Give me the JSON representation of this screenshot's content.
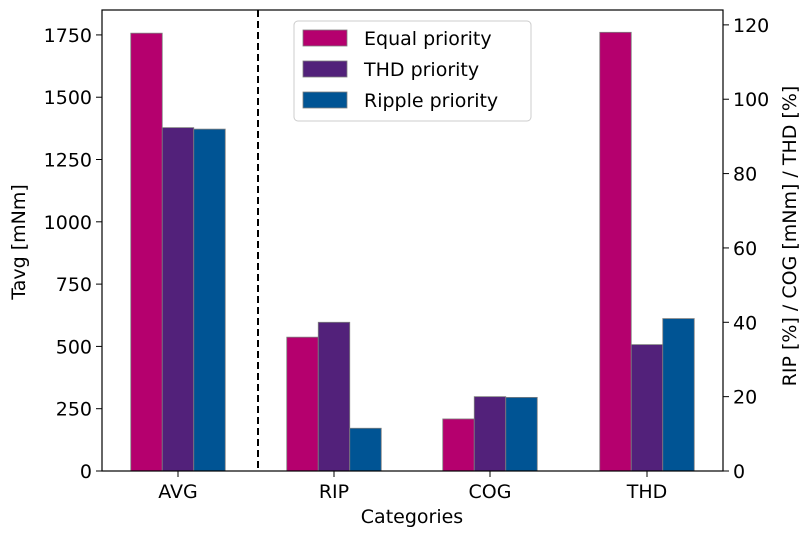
{
  "chart_data": {
    "type": "bar",
    "categories": [
      "AVG",
      "RIP",
      "COG",
      "THD"
    ],
    "xlabel": "Categories",
    "ylabel_left": "Tavg [mNm]",
    "ylabel_right": "RIP [%] / COG [mNm] / THD [%]",
    "left_axis": {
      "ylim": [
        0,
        1850
      ],
      "ticks": [
        0,
        250,
        500,
        750,
        1000,
        1250,
        1500,
        1750
      ]
    },
    "right_axis": {
      "ylim": [
        0,
        124
      ],
      "ticks": [
        0,
        20,
        40,
        60,
        80,
        100,
        120
      ]
    },
    "separator_after_category": "AVG",
    "grid": false,
    "legend_position": "top-center",
    "series": [
      {
        "name": "Equal priority",
        "color": "#b5006e",
        "values": [
          1757,
          36,
          14,
          118
        ],
        "axes": [
          "left",
          "right",
          "right",
          "right"
        ]
      },
      {
        "name": "THD priority",
        "color": "#52217a",
        "values": [
          1378,
          40,
          20,
          34
        ],
        "axes": [
          "left",
          "right",
          "right",
          "right"
        ]
      },
      {
        "name": "Ripple priority",
        "color": "#005494",
        "values": [
          1372,
          11.5,
          19.8,
          41
        ],
        "axes": [
          "left",
          "right",
          "right",
          "right"
        ]
      }
    ]
  }
}
